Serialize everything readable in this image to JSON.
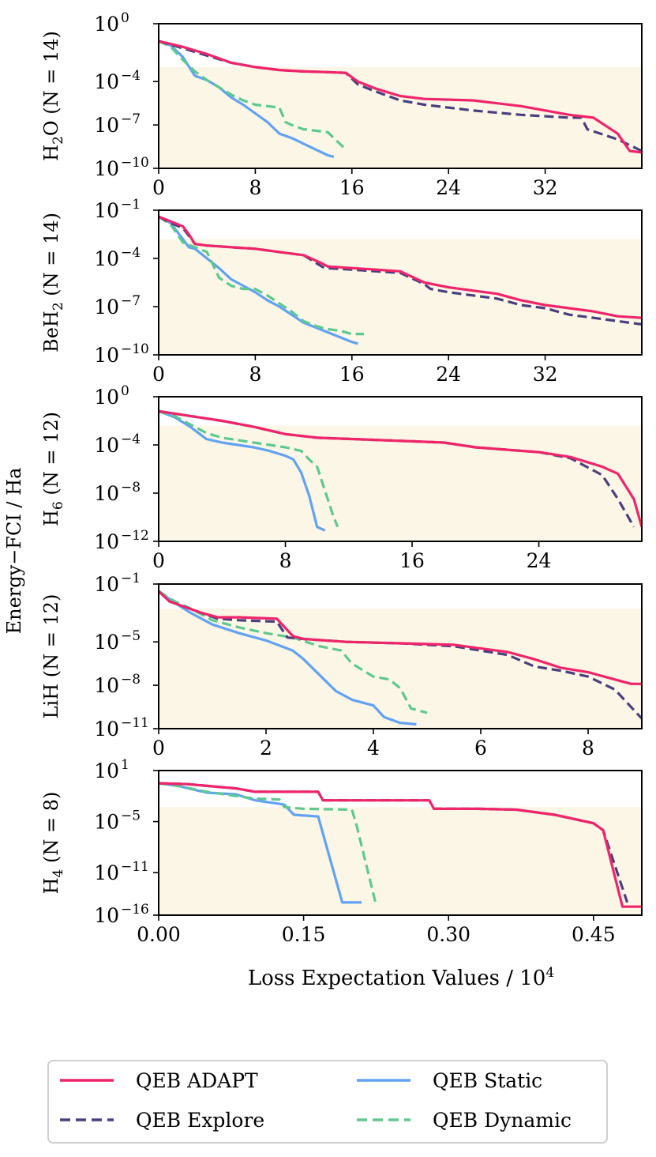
{
  "figure": {
    "ylabel": "Energy−FCI / Ha",
    "xlabel": "Loss Expectation Values / 10",
    "xlabel_sup": "4"
  },
  "colors": {
    "adapt": "#f0246a",
    "explore": "#4a3f7e",
    "static": "#62a2f2",
    "dynamic": "#5ec98f",
    "shade": "#fcf6e6"
  },
  "legend": [
    {
      "label": "QEB ADAPT",
      "key": "adapt",
      "dash": false
    },
    {
      "label": "QEB Static",
      "key": "static",
      "dash": false
    },
    {
      "label": "QEB Explore",
      "key": "explore",
      "dash": true
    },
    {
      "label": "QEB Dynamic",
      "key": "dynamic",
      "dash": true
    }
  ],
  "chart_data": [
    {
      "type": "line",
      "yscale": "log",
      "mol": "H",
      "sub": "2",
      "mol2": "O",
      "n_label": "(N = 14)",
      "xlim": [
        0,
        40
      ],
      "ylim_exp": [
        -10,
        0
      ],
      "xticks": [
        0,
        8,
        16,
        24,
        32
      ],
      "xtick_labels": [
        "0",
        "8",
        "16",
        "24",
        "32"
      ],
      "yticks_exp": [
        0,
        -4,
        -7,
        -10
      ],
      "shade_top_exp": -3,
      "series": [
        {
          "name": "QEB ADAPT",
          "key": "adapt",
          "x": [
            0,
            2,
            4,
            6,
            8,
            10,
            12,
            14,
            15.5,
            16.5,
            18,
            20,
            22,
            26,
            30,
            34,
            36,
            38,
            39,
            40
          ],
          "log10y": [
            -1.2,
            -1.6,
            -2.1,
            -2.7,
            -3.0,
            -3.2,
            -3.3,
            -3.35,
            -3.4,
            -4.0,
            -4.5,
            -5.0,
            -5.2,
            -5.3,
            -5.7,
            -6.3,
            -6.5,
            -7.6,
            -8.8,
            -8.9
          ]
        },
        {
          "name": "QEB Explore",
          "key": "explore",
          "x": [
            0,
            2,
            4,
            6,
            8,
            10,
            12,
            14,
            15.5,
            16.5,
            18,
            20,
            22,
            26,
            30,
            34,
            35,
            35.5,
            38,
            40
          ],
          "log10y": [
            -1.2,
            -1.7,
            -2.2,
            -2.7,
            -3.0,
            -3.2,
            -3.3,
            -3.35,
            -3.4,
            -4.2,
            -4.7,
            -5.3,
            -5.6,
            -6.0,
            -6.3,
            -6.5,
            -6.5,
            -7.3,
            -8.0,
            -8.8
          ]
        },
        {
          "name": "QEB Static",
          "key": "static",
          "x": [
            0,
            1,
            2,
            3,
            4,
            5,
            6,
            7,
            8,
            9,
            10,
            11,
            12,
            13,
            14,
            14.5
          ],
          "log10y": [
            -1.2,
            -1.5,
            -2.3,
            -3.6,
            -3.9,
            -4.4,
            -5.1,
            -5.6,
            -6.2,
            -6.8,
            -7.6,
            -7.9,
            -8.3,
            -8.7,
            -9.1,
            -9.2
          ]
        },
        {
          "name": "QEB Dynamic",
          "key": "dynamic",
          "x": [
            0,
            1,
            2,
            3,
            4,
            5,
            6,
            7,
            8,
            9,
            10,
            10.5,
            11,
            12,
            13,
            14,
            15.5
          ],
          "log10y": [
            -1.2,
            -1.6,
            -2.5,
            -3.3,
            -3.9,
            -4.4,
            -4.9,
            -5.3,
            -5.6,
            -5.7,
            -5.8,
            -6.8,
            -7.0,
            -7.3,
            -7.4,
            -7.5,
            -8.7
          ]
        }
      ]
    },
    {
      "type": "line",
      "yscale": "log",
      "mol": "BeH",
      "sub": "2",
      "mol2": "",
      "n_label": "(N = 14)",
      "xlim": [
        0,
        40
      ],
      "ylim_exp": [
        -10,
        -1
      ],
      "xticks": [
        0,
        8,
        16,
        24,
        32
      ],
      "xtick_labels": [
        "0",
        "8",
        "16",
        "24",
        "32"
      ],
      "yticks_exp": [
        -1,
        -4,
        -7,
        -10
      ],
      "shade_top_exp": -2.8,
      "series": [
        {
          "name": "QEB ADAPT",
          "key": "adapt",
          "x": [
            0,
            1,
            2,
            2.5,
            3,
            4,
            6,
            8,
            10,
            12,
            13.5,
            14,
            16,
            18,
            20,
            22,
            24,
            26,
            28,
            30,
            32,
            34,
            36,
            38,
            40
          ],
          "log10y": [
            -1.4,
            -1.7,
            -2.0,
            -2.5,
            -3.1,
            -3.2,
            -3.3,
            -3.4,
            -3.6,
            -3.8,
            -4.3,
            -4.5,
            -4.6,
            -4.7,
            -4.8,
            -5.5,
            -5.8,
            -6.0,
            -6.2,
            -6.6,
            -6.9,
            -7.1,
            -7.3,
            -7.6,
            -7.7
          ]
        },
        {
          "name": "QEB Explore",
          "key": "explore",
          "x": [
            0,
            1,
            2,
            2.5,
            3,
            4,
            6,
            8,
            10,
            12,
            13.5,
            13.8,
            16,
            18,
            20,
            22,
            22.5,
            24,
            26,
            28,
            30,
            32,
            34,
            36,
            38,
            40
          ],
          "log10y": [
            -1.4,
            -1.8,
            -2.1,
            -2.6,
            -3.1,
            -3.2,
            -3.3,
            -3.4,
            -3.6,
            -3.8,
            -4.5,
            -4.6,
            -4.7,
            -4.8,
            -4.9,
            -5.6,
            -5.9,
            -6.1,
            -6.3,
            -6.5,
            -6.9,
            -7.1,
            -7.5,
            -7.7,
            -7.9,
            -8.1
          ]
        },
        {
          "name": "QEB Static",
          "key": "static",
          "x": [
            0,
            1,
            1.8,
            2.5,
            3,
            4,
            5,
            6,
            7,
            8,
            9,
            10,
            11,
            12,
            13,
            14,
            15,
            16,
            16.5
          ],
          "log10y": [
            -1.4,
            -1.8,
            -2.6,
            -3.3,
            -3.4,
            -4.0,
            -4.6,
            -5.3,
            -5.7,
            -6.1,
            -6.6,
            -7.0,
            -7.5,
            -8.0,
            -8.3,
            -8.6,
            -8.9,
            -9.2,
            -9.3
          ]
        },
        {
          "name": "QEB Dynamic",
          "key": "dynamic",
          "x": [
            0,
            1,
            2,
            3,
            4,
            5,
            6,
            7,
            8,
            9,
            10,
            11,
            12,
            13,
            14,
            15,
            16,
            17
          ],
          "log10y": [
            -1.4,
            -1.9,
            -3.0,
            -3.3,
            -3.6,
            -5.2,
            -5.7,
            -5.9,
            -5.9,
            -6.3,
            -6.8,
            -7.3,
            -7.9,
            -8.2,
            -8.4,
            -8.5,
            -8.7,
            -8.7
          ]
        }
      ]
    },
    {
      "type": "line",
      "yscale": "log",
      "mol": "H",
      "sub": "6",
      "mol2": "",
      "n_label": "(N = 12)",
      "xlim": [
        0,
        30.5
      ],
      "ylim_exp": [
        -12,
        0
      ],
      "xticks": [
        0,
        8,
        16,
        24
      ],
      "xtick_labels": [
        "0",
        "8",
        "16",
        "24"
      ],
      "yticks_exp": [
        0,
        -4,
        -8,
        -12
      ],
      "shade_top_exp": -2.4,
      "series": [
        {
          "name": "QEB ADAPT",
          "key": "adapt",
          "x": [
            0,
            2,
            4,
            6,
            8,
            10,
            12,
            14,
            16,
            18,
            20,
            22,
            24,
            26,
            28,
            29,
            30,
            30.5
          ],
          "log10y": [
            -1.2,
            -1.6,
            -2.0,
            -2.5,
            -3.1,
            -3.4,
            -3.5,
            -3.6,
            -3.7,
            -3.8,
            -4.2,
            -4.4,
            -4.6,
            -5.0,
            -5.8,
            -6.4,
            -8.5,
            -10.8
          ]
        },
        {
          "name": "QEB Explore",
          "key": "explore",
          "x": [
            0,
            2,
            4,
            6,
            8,
            10,
            12,
            14,
            16,
            18,
            20,
            22,
            24,
            26,
            27,
            28,
            29,
            30
          ],
          "log10y": [
            -1.2,
            -1.6,
            -2.0,
            -2.5,
            -3.1,
            -3.4,
            -3.5,
            -3.6,
            -3.7,
            -3.8,
            -4.2,
            -4.4,
            -4.6,
            -5.1,
            -5.8,
            -6.5,
            -8.5,
            -10.8
          ]
        },
        {
          "name": "QEB Static",
          "key": "static",
          "x": [
            0,
            1,
            2,
            3,
            4,
            5,
            6,
            7,
            8,
            8.5,
            9,
            9.5,
            10,
            10.5
          ],
          "log10y": [
            -1.2,
            -1.7,
            -2.5,
            -3.5,
            -3.8,
            -4.0,
            -4.2,
            -4.5,
            -4.9,
            -5.2,
            -6.3,
            -8.2,
            -10.8,
            -11.1
          ]
        },
        {
          "name": "QEB Dynamic",
          "key": "dynamic",
          "x": [
            0,
            1,
            2,
            3,
            4,
            5,
            6,
            7,
            8,
            9,
            9.5,
            10,
            10.5,
            11,
            11.3
          ],
          "log10y": [
            -1.2,
            -1.6,
            -2.3,
            -3.0,
            -3.4,
            -3.6,
            -3.8,
            -4.0,
            -4.2,
            -4.5,
            -5.2,
            -5.8,
            -7.8,
            -9.8,
            -10.8
          ]
        }
      ]
    },
    {
      "type": "line",
      "yscale": "log",
      "mol": "LiH",
      "sub": "",
      "mol2": "",
      "n_label": "(N = 12)",
      "xlim": [
        0,
        9
      ],
      "ylim_exp": [
        -11,
        -1
      ],
      "xticks": [
        0,
        2,
        4,
        6,
        8
      ],
      "xtick_labels": [
        "0",
        "2",
        "4",
        "6",
        "8"
      ],
      "yticks_exp": [
        -1,
        -5,
        -8,
        -11
      ],
      "shade_top_exp": -2.7,
      "series": [
        {
          "name": "QEB ADAPT",
          "key": "adapt",
          "x": [
            0,
            0.2,
            0.5,
            0.8,
            1.1,
            1.5,
            2.2,
            2.5,
            2.7,
            3.5,
            4.5,
            5.5,
            6.5,
            7.0,
            7.5,
            8.0,
            8.5,
            8.8,
            9.0
          ],
          "log10y": [
            -1.5,
            -2.2,
            -2.6,
            -3.0,
            -3.3,
            -3.3,
            -3.4,
            -4.6,
            -4.8,
            -5.0,
            -5.1,
            -5.2,
            -5.7,
            -6.2,
            -6.8,
            -7.1,
            -7.6,
            -7.9,
            -7.9
          ]
        },
        {
          "name": "QEB Explore",
          "key": "explore",
          "x": [
            0,
            0.2,
            0.5,
            0.8,
            1.1,
            1.5,
            2.2,
            2.4,
            2.7,
            3.5,
            4.5,
            5.5,
            6.5,
            7.0,
            7.5,
            8.0,
            8.5,
            9.0
          ],
          "log10y": [
            -1.5,
            -2.2,
            -2.6,
            -3.0,
            -3.4,
            -3.5,
            -3.6,
            -4.7,
            -4.8,
            -5.0,
            -5.1,
            -5.3,
            -5.9,
            -6.7,
            -7.0,
            -7.4,
            -8.3,
            -10.3
          ]
        },
        {
          "name": "QEB Static",
          "key": "static",
          "x": [
            0,
            0.3,
            0.6,
            1.0,
            1.5,
            2.0,
            2.5,
            2.7,
            3.0,
            3.3,
            3.6,
            4.0,
            4.2,
            4.5,
            4.8
          ],
          "log10y": [
            -1.5,
            -2.3,
            -3.0,
            -3.8,
            -4.4,
            -4.9,
            -5.6,
            -6.2,
            -7.3,
            -8.4,
            -9.0,
            -9.4,
            -10.2,
            -10.6,
            -10.7
          ]
        },
        {
          "name": "QEB Dynamic",
          "key": "dynamic",
          "x": [
            0,
            0.3,
            0.6,
            1.0,
            1.5,
            2.0,
            2.5,
            3.0,
            3.4,
            3.6,
            4.0,
            4.3,
            4.5,
            4.7,
            5.0
          ],
          "log10y": [
            -1.5,
            -2.2,
            -2.7,
            -3.5,
            -4.0,
            -4.4,
            -4.7,
            -5.3,
            -5.6,
            -6.5,
            -7.4,
            -7.6,
            -8.2,
            -9.6,
            -9.9
          ]
        }
      ]
    },
    {
      "type": "line",
      "yscale": "log",
      "mol": "H",
      "sub": "4",
      "mol2": "",
      "n_label": "(N = 8)",
      "xlim": [
        0,
        0.5
      ],
      "ylim_exp": [
        -16,
        1
      ],
      "xticks": [
        0,
        0.15,
        0.3,
        0.45
      ],
      "xtick_labels": [
        "0.00",
        "0.15",
        "0.30",
        "0.45"
      ],
      "yticks_exp": [
        1,
        -5,
        -11,
        -16
      ],
      "shade_top_exp": -3.3,
      "series": [
        {
          "name": "QEB ADAPT",
          "key": "adapt",
          "x": [
            0,
            0.03,
            0.05,
            0.08,
            0.1,
            0.14,
            0.165,
            0.17,
            0.28,
            0.285,
            0.33,
            0.37,
            0.41,
            0.45,
            0.46,
            0.48,
            0.5
          ],
          "log10y": [
            -0.5,
            -0.6,
            -0.8,
            -1.1,
            -1.5,
            -1.5,
            -1.5,
            -2.5,
            -2.5,
            -3.5,
            -3.5,
            -3.6,
            -4.2,
            -5.2,
            -6.0,
            -15.0,
            -15.0
          ]
        },
        {
          "name": "QEB Explore",
          "key": "explore",
          "x": [
            0,
            0.03,
            0.05,
            0.08,
            0.1,
            0.14,
            0.165,
            0.17,
            0.28,
            0.285,
            0.33,
            0.37,
            0.41,
            0.45,
            0.46,
            0.485
          ],
          "log10y": [
            -0.5,
            -0.6,
            -0.8,
            -1.1,
            -1.5,
            -1.5,
            -1.5,
            -2.5,
            -2.5,
            -3.5,
            -3.5,
            -3.6,
            -4.2,
            -5.2,
            -6.0,
            -14.5
          ]
        },
        {
          "name": "QEB Static",
          "key": "static",
          "x": [
            0,
            0.02,
            0.05,
            0.08,
            0.1,
            0.13,
            0.14,
            0.165,
            0.19,
            0.21
          ],
          "log10y": [
            -0.5,
            -0.8,
            -1.6,
            -1.8,
            -2.5,
            -3.0,
            -4.2,
            -4.4,
            -14.5,
            -14.5
          ]
        },
        {
          "name": "QEB Dynamic",
          "key": "dynamic",
          "x": [
            0,
            0.02,
            0.05,
            0.08,
            0.1,
            0.125,
            0.13,
            0.15,
            0.2,
            0.205,
            0.225
          ],
          "log10y": [
            -0.5,
            -0.8,
            -1.5,
            -2.0,
            -2.3,
            -2.4,
            -3.3,
            -3.5,
            -3.6,
            -5.5,
            -14.8
          ]
        }
      ]
    }
  ]
}
